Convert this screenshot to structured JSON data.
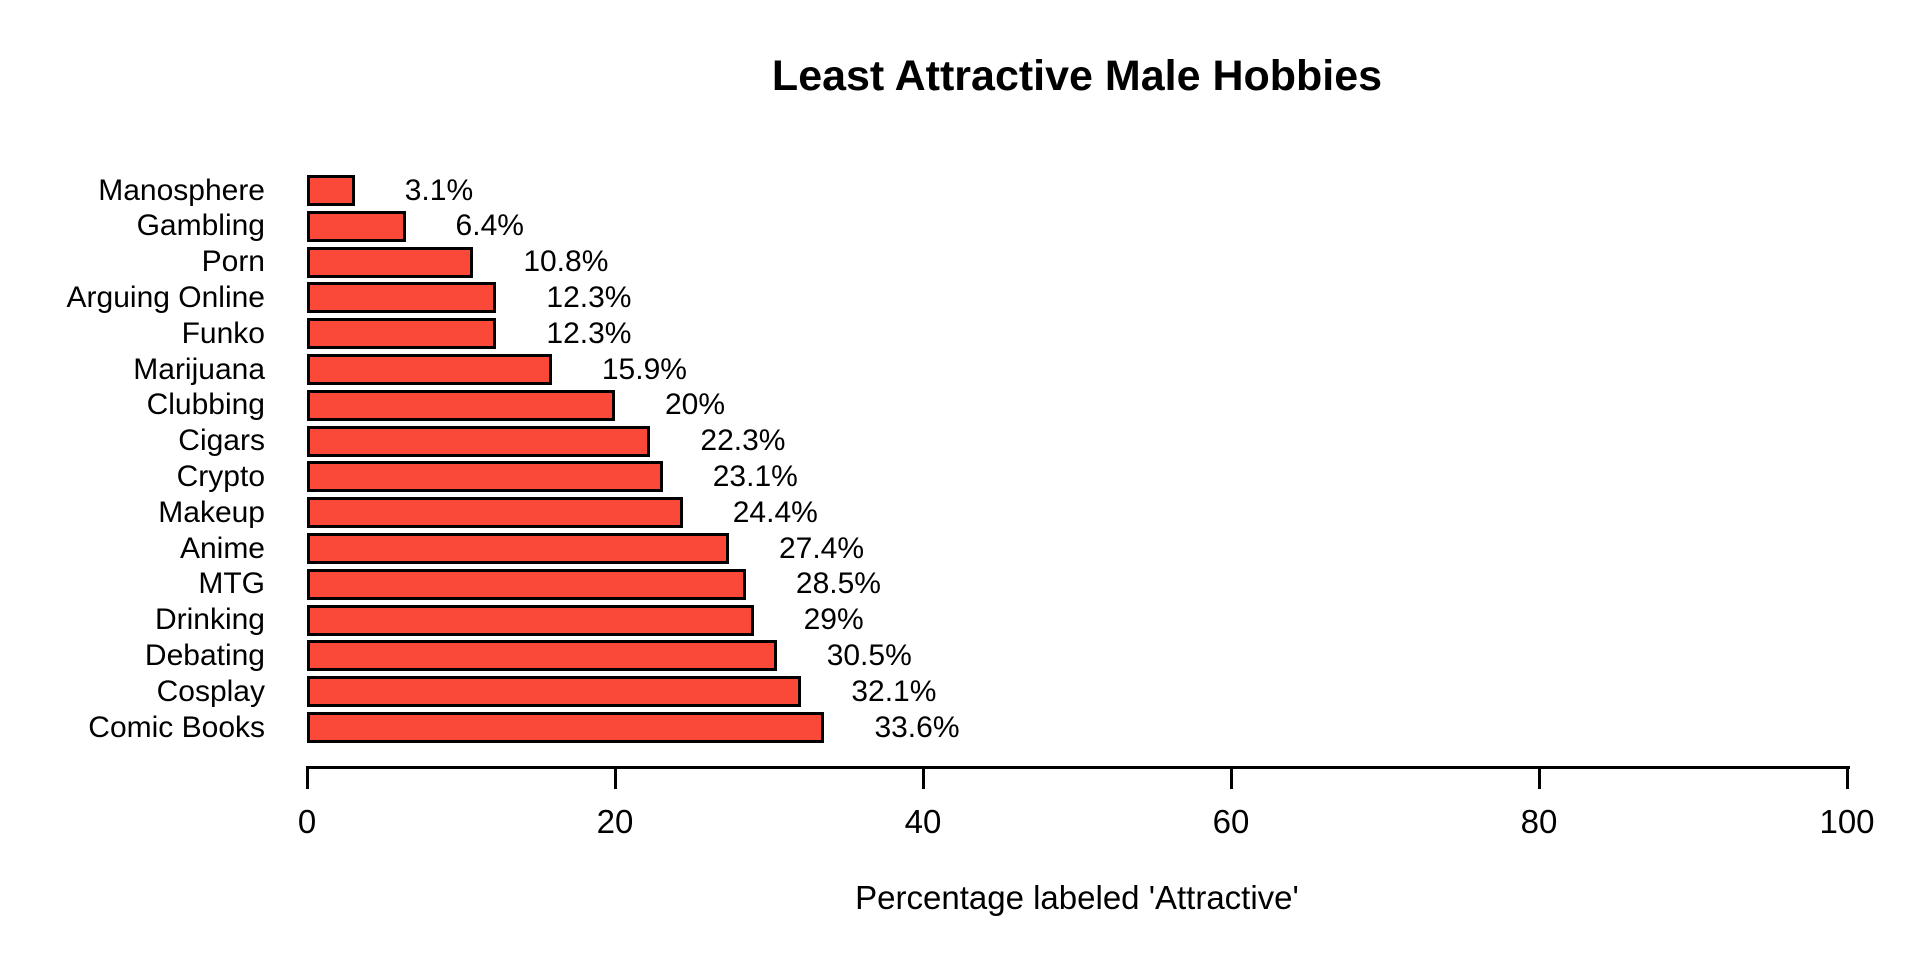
{
  "chart_data": {
    "type": "bar",
    "orientation": "horizontal",
    "title": "Least Attractive Male Hobbies",
    "xlabel": "Percentage labeled 'Attractive'",
    "categories": [
      "Manosphere",
      "Gambling",
      "Porn",
      "Arguing Online",
      "Funko",
      "Marijuana",
      "Clubbing",
      "Cigars",
      "Crypto",
      "Makeup",
      "Anime",
      "MTG",
      "Drinking",
      "Debating",
      "Cosplay",
      "Comic Books"
    ],
    "values": [
      3.1,
      6.4,
      10.8,
      12.3,
      12.3,
      15.9,
      20,
      22.3,
      23.1,
      24.4,
      27.4,
      28.5,
      29,
      30.5,
      32.1,
      33.6
    ],
    "value_labels": [
      "3.1%",
      "6.4%",
      "10.8%",
      "12.3%",
      "12.3%",
      "15.9%",
      "20%",
      "22.3%",
      "23.1%",
      "24.4%",
      "27.4%",
      "28.5%",
      "29%",
      "30.5%",
      "32.1%",
      "33.6%"
    ],
    "xticks": [
      0,
      20,
      40,
      60,
      80,
      100
    ],
    "xlim": [
      0,
      100
    ],
    "bar_color": "#FA4839",
    "bar_border_color": "#000000",
    "text_color": "#000000",
    "background_color": "#FFFFFF",
    "grid": false,
    "legend": false
  }
}
